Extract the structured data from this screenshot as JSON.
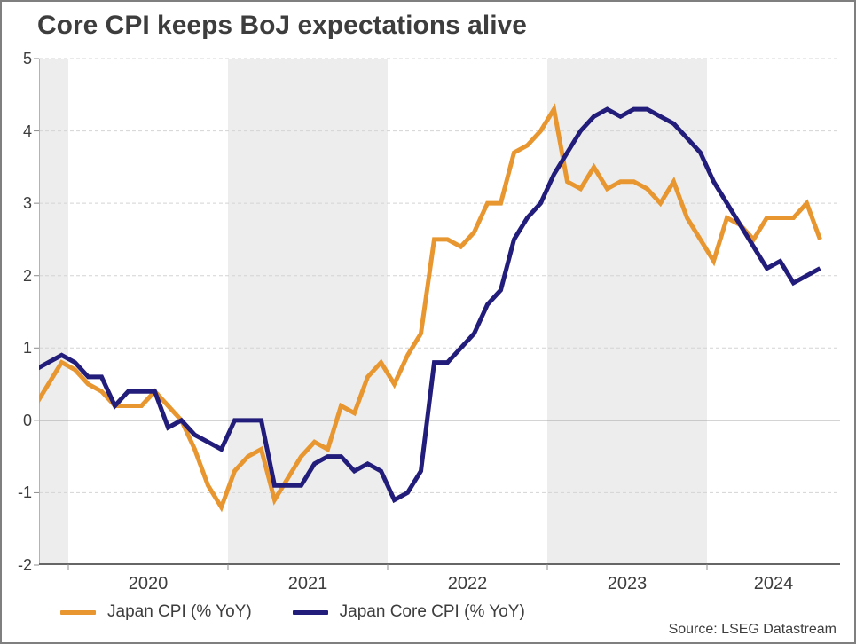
{
  "header": {
    "title": "Core CPI keeps BoJ expectations alive"
  },
  "footer": {
    "source": "Source: LSEG Datastream"
  },
  "legend": {
    "items": [
      {
        "label": "Japan CPI (% YoY)",
        "color": "#E8962F"
      },
      {
        "label": "Japan Core CPI (% YoY)",
        "color": "#221C7A"
      }
    ]
  },
  "colors": {
    "cpi_line": "#E8962F",
    "core_cpi_line": "#221C7A",
    "year_band_gray": "#ededed",
    "gridline": "#d4d4d4",
    "zero_line": "#8c8c8c",
    "axis_line": "#b3b3b3",
    "bottom_axis": "#666666",
    "tick": "#8c8c8c",
    "text": "#3d3d3d"
  },
  "chart_data": {
    "type": "line",
    "title": "Core CPI keeps BoJ expectations alive",
    "xlabel": "",
    "ylabel": "",
    "ylim": [
      -2,
      5
    ],
    "yticks": [
      5,
      4,
      3,
      2,
      1,
      0,
      -1,
      -2
    ],
    "grid": "horizontal-dashed, alternating year bands shaded",
    "legend_position": "bottom-left",
    "x_range": {
      "start": "2019-10",
      "end": "2024-09",
      "freq": "monthly"
    },
    "year_labels": [
      "2020",
      "2021",
      "2022",
      "2023",
      "2024"
    ],
    "shaded_year_bands": [
      "2019 (partial)",
      "2021",
      "2023"
    ],
    "series": [
      {
        "name": "Japan CPI (% YoY)",
        "color": "#E8962F",
        "values": [
          0.2,
          0.5,
          0.8,
          0.7,
          0.5,
          0.4,
          0.2,
          0.2,
          0.2,
          0.4,
          0.2,
          0.0,
          -0.4,
          -0.9,
          -1.2,
          -0.7,
          -0.5,
          -0.4,
          -1.1,
          -0.8,
          -0.5,
          -0.3,
          -0.4,
          0.2,
          0.1,
          0.6,
          0.8,
          0.5,
          0.9,
          1.2,
          2.5,
          2.5,
          2.4,
          2.6,
          3.0,
          3.0,
          3.7,
          3.8,
          4.0,
          4.3,
          3.3,
          3.2,
          3.5,
          3.2,
          3.3,
          3.3,
          3.2,
          3.0,
          3.3,
          2.8,
          2.5,
          2.2,
          2.8,
          2.7,
          2.5,
          2.8,
          2.8,
          2.8,
          3.0,
          2.5
        ]
      },
      {
        "name": "Japan Core CPI (% YoY)",
        "color": "#221C7A",
        "values": [
          0.7,
          0.8,
          0.9,
          0.8,
          0.6,
          0.6,
          0.2,
          0.4,
          0.4,
          0.4,
          -0.1,
          0.0,
          -0.2,
          -0.3,
          -0.4,
          0.0,
          0.0,
          0.0,
          -0.9,
          -0.9,
          -0.9,
          -0.6,
          -0.5,
          -0.5,
          -0.7,
          -0.6,
          -0.7,
          -1.1,
          -1.0,
          -0.7,
          0.8,
          0.8,
          1.0,
          1.2,
          1.6,
          1.8,
          2.5,
          2.8,
          3.0,
          3.4,
          3.7,
          4.0,
          4.2,
          4.3,
          4.2,
          4.3,
          4.3,
          4.2,
          4.1,
          3.9,
          3.7,
          3.3,
          3.0,
          2.7,
          2.4,
          2.1,
          2.2,
          1.9,
          2.0,
          2.1
        ]
      }
    ]
  }
}
